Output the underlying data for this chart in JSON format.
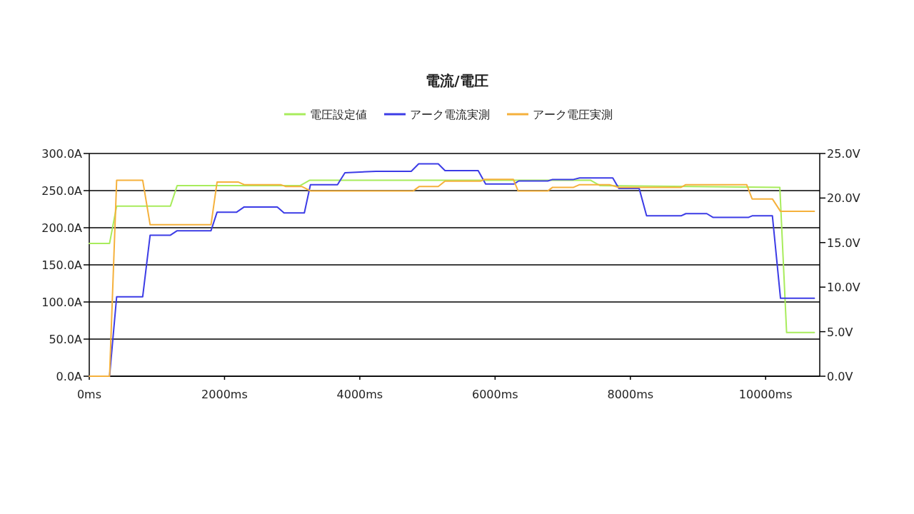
{
  "chart_data": {
    "type": "line",
    "title": "電流/電圧",
    "legend": "top",
    "grid": "y",
    "line_style": "solid",
    "xlim": [
      0,
      10800
    ],
    "xticks": [
      {
        "value": 0,
        "label": "0ms"
      },
      {
        "value": 2000,
        "label": "2000ms"
      },
      {
        "value": 4000,
        "label": "4000ms"
      },
      {
        "value": 6000,
        "label": "6000ms"
      },
      {
        "value": 8000,
        "label": "8000ms"
      },
      {
        "value": 10000,
        "label": "10000ms"
      }
    ],
    "ylim": [
      0,
      300
    ],
    "yticks": [
      {
        "value": 0,
        "label": "0.0A"
      },
      {
        "value": 50,
        "label": "50.0A"
      },
      {
        "value": 100,
        "label": "100.0A"
      },
      {
        "value": 150,
        "label": "150.0A"
      },
      {
        "value": 200,
        "label": "200.0A"
      },
      {
        "value": 250,
        "label": "250.0A"
      },
      {
        "value": 300,
        "label": "300.0A"
      }
    ],
    "y2lim": [
      0,
      25
    ],
    "y2ticks": [
      {
        "value": 0,
        "label": "0.0V"
      },
      {
        "value": 5,
        "label": "5.0V"
      },
      {
        "value": 10,
        "label": "10.0V"
      },
      {
        "value": 15,
        "label": "15.0V"
      },
      {
        "value": 20,
        "label": "20.0V"
      },
      {
        "value": 25,
        "label": "25.0V"
      }
    ],
    "series": [
      {
        "name": "電圧設定値",
        "color": "#a8ec5c",
        "axis": "y2",
        "x": [
          0,
          300,
          405,
          1200,
          1300,
          3120,
          3260,
          7410,
          7550,
          10210,
          10310,
          10720
        ],
        "values": [
          14.9,
          14.9,
          19.1,
          19.1,
          21.4,
          21.4,
          22.0,
          22.0,
          21.4,
          21.2,
          4.9,
          4.9
        ]
      },
      {
        "name": "アーク電流実測",
        "color": "#3c3ce6",
        "axis": "y",
        "x": [
          0,
          300,
          405,
          790,
          900,
          1200,
          1300,
          1800,
          1890,
          2180,
          2290,
          2780,
          2880,
          3180,
          3270,
          3670,
          3780,
          4240,
          4760,
          4870,
          5160,
          5260,
          5750,
          5860,
          6280,
          6350,
          6780,
          6850,
          7160,
          7250,
          7740,
          7830,
          8130,
          8240,
          8750,
          8820,
          9130,
          9220,
          9750,
          9800,
          10100,
          10220,
          10720
        ],
        "values": [
          0,
          0,
          107,
          107,
          190,
          190,
          196,
          196,
          221,
          221,
          228,
          228,
          220,
          220,
          258,
          258,
          274,
          276,
          276,
          286,
          286,
          277,
          277,
          259,
          259,
          263,
          263,
          265,
          265,
          267,
          267,
          253,
          253,
          216,
          216,
          219,
          219,
          214,
          214,
          216,
          216,
          105,
          105
        ]
      },
      {
        "name": "アーク電圧実測",
        "color": "#f5b13c",
        "axis": "y2",
        "x": [
          0,
          300,
          405,
          790,
          900,
          1800,
          1890,
          2200,
          2290,
          2830,
          2900,
          3140,
          3270,
          4790,
          4880,
          5160,
          5260,
          5790,
          5840,
          6270,
          6340,
          6780,
          6850,
          7160,
          7250,
          7690,
          7830,
          8750,
          8820,
          9720,
          9800,
          10100,
          10220,
          10720
        ],
        "values": [
          0,
          0,
          22.0,
          22.0,
          17.0,
          17.0,
          21.8,
          21.8,
          21.5,
          21.5,
          21.3,
          21.3,
          20.8,
          20.8,
          21.3,
          21.3,
          21.9,
          21.9,
          22.1,
          22.1,
          20.8,
          20.8,
          21.2,
          21.2,
          21.5,
          21.5,
          21.2,
          21.2,
          21.5,
          21.5,
          19.9,
          19.9,
          18.5,
          18.5
        ]
      }
    ]
  }
}
